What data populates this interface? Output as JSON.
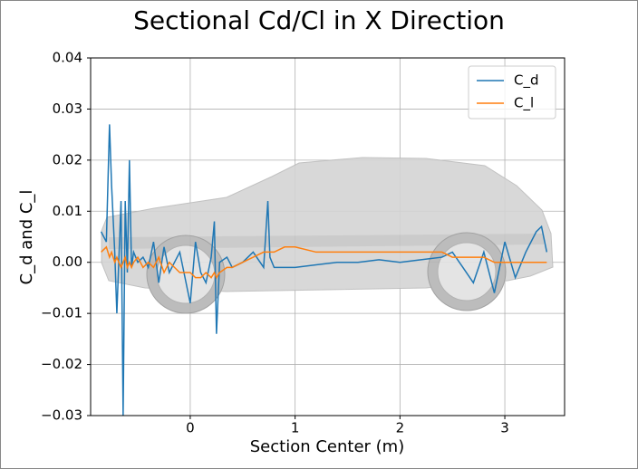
{
  "chart_data": {
    "type": "line",
    "title": "Sectional Cd/Cl in X Direction",
    "x_label": "Section Center (m)",
    "y_label": "C_d and C_l",
    "x": [
      -0.85,
      -0.8,
      -0.77,
      -0.75,
      -0.72,
      -0.7,
      -0.66,
      -0.64,
      -0.62,
      -0.6,
      -0.58,
      -0.56,
      -0.54,
      -0.5,
      -0.45,
      -0.4,
      -0.35,
      -0.3,
      -0.25,
      -0.2,
      -0.15,
      -0.1,
      -0.05,
      0,
      0.05,
      0.1,
      0.15,
      0.2,
      0.23,
      0.25,
      0.28,
      0.35,
      0.4,
      0.5,
      0.6,
      0.7,
      0.74,
      0.76,
      0.8,
      0.9,
      1.0,
      1.2,
      1.4,
      1.6,
      1.8,
      2.0,
      2.2,
      2.4,
      2.5,
      2.6,
      2.7,
      2.8,
      2.9,
      3.0,
      3.1,
      3.2,
      3.3,
      3.35,
      3.4
    ],
    "series": [
      {
        "name": "C_d",
        "color": "#1f77b4",
        "values": [
          0.006,
          0.004,
          0.027,
          0.015,
          0.002,
          -0.01,
          0.012,
          -0.03,
          0.012,
          -0.002,
          0.02,
          -0.001,
          0.002,
          0.0,
          0.001,
          -0.001,
          0.004,
          -0.004,
          0.003,
          -0.002,
          0.0,
          0.002,
          -0.003,
          -0.008,
          0.004,
          -0.002,
          -0.004,
          0.001,
          0.008,
          -0.014,
          0.0,
          0.001,
          -0.001,
          0.0,
          0.002,
          -0.001,
          0.012,
          0.001,
          -0.001,
          -0.001,
          -0.001,
          -0.0005,
          0.0,
          0.0,
          0.0005,
          0.0,
          0.0005,
          0.001,
          0.002,
          -0.001,
          -0.004,
          0.002,
          -0.006,
          0.004,
          -0.003,
          0.002,
          0.006,
          0.007,
          0.002
        ]
      },
      {
        "name": "C_l",
        "color": "#ff7f0e",
        "values": [
          0.002,
          0.003,
          0.001,
          0.002,
          0.0,
          0.001,
          -0.001,
          0.0,
          0.001,
          -0.001,
          0.0,
          -0.001,
          0.0,
          0.001,
          -0.001,
          0.0,
          -0.001,
          0.001,
          -0.002,
          0.0,
          -0.001,
          -0.002,
          -0.002,
          -0.002,
          -0.003,
          -0.003,
          -0.002,
          -0.003,
          -0.002,
          -0.003,
          -0.002,
          -0.001,
          -0.001,
          0.0,
          0.001,
          0.002,
          0.002,
          0.002,
          0.002,
          0.003,
          0.003,
          0.002,
          0.002,
          0.002,
          0.002,
          0.002,
          0.002,
          0.002,
          0.001,
          0.001,
          0.001,
          0.001,
          0.0,
          0.0,
          0.0,
          0.0,
          0.0,
          0.0,
          0.0
        ]
      }
    ],
    "xlim": [
      -0.95,
      3.57
    ],
    "xticks": [
      0,
      1,
      2,
      3
    ],
    "ylim": [
      -0.03,
      0.04
    ],
    "yticks": [
      {
        "value": -0.03,
        "label": "−0.03"
      },
      {
        "value": -0.02,
        "label": "−0.02"
      },
      {
        "value": -0.01,
        "label": "−0.01"
      },
      {
        "value": 0,
        "label": "0.00"
      },
      0.01,
      0.02,
      0.03,
      0.04
    ],
    "grid": true,
    "legend": "upper right"
  }
}
